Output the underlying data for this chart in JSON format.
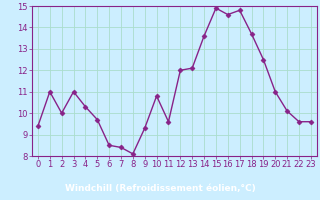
{
  "x": [
    0,
    1,
    2,
    3,
    4,
    5,
    6,
    7,
    8,
    9,
    10,
    11,
    12,
    13,
    14,
    15,
    16,
    17,
    18,
    19,
    20,
    21,
    22,
    23
  ],
  "y": [
    9.4,
    11.0,
    10.0,
    11.0,
    10.3,
    9.7,
    8.5,
    8.4,
    8.1,
    9.3,
    10.8,
    9.6,
    12.0,
    12.1,
    13.6,
    14.9,
    14.6,
    14.8,
    13.7,
    12.5,
    11.0,
    10.1,
    9.6,
    9.6
  ],
  "line_color": "#882288",
  "marker": "D",
  "marker_size": 2.5,
  "linewidth": 1.0,
  "xlabel": "Windchill (Refroidissement éolien,°C)",
  "xlabel_fontsize": 6.5,
  "ylim": [
    8,
    15
  ],
  "xlim": [
    -0.5,
    23.5
  ],
  "yticks": [
    8,
    9,
    10,
    11,
    12,
    13,
    14,
    15
  ],
  "xticks": [
    0,
    1,
    2,
    3,
    4,
    5,
    6,
    7,
    8,
    9,
    10,
    11,
    12,
    13,
    14,
    15,
    16,
    17,
    18,
    19,
    20,
    21,
    22,
    23
  ],
  "bg_color": "#cceeff",
  "plot_bg_color": "#cceeff",
  "grid_color": "#aaddcc",
  "tick_color": "#882288",
  "tick_fontsize": 6.0,
  "spine_color": "#882288",
  "xlabel_bar_color": "#882288",
  "xlabel_text_color": "#ffffff"
}
